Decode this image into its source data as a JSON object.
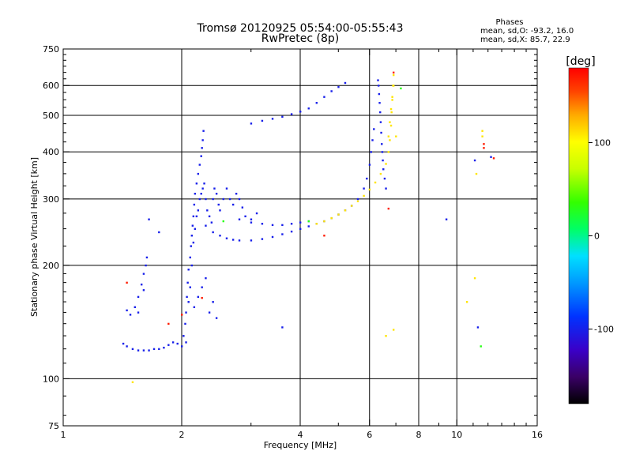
{
  "chart_data": {
    "type": "scatter",
    "title": "Tromsø 20120925 05:54:00-05:55:43",
    "subtitle": "RwPretec (8p)",
    "annotation": {
      "header": "Phases",
      "line1": "mean, sd,O: -93.2, 16.0",
      "line2": "mean, sd,X:  85.7, 22.9"
    },
    "xlabel": "Frequency [MHz]",
    "ylabel": "Stationary phase Virtual Height [km]",
    "x_scale": "log",
    "y_scale": "log",
    "xlim": [
      1,
      16
    ],
    "ylim": [
      75,
      750
    ],
    "x_ticks": [
      {
        "v": 1,
        "label": "1"
      },
      {
        "v": 2,
        "label": "2"
      },
      {
        "v": 4,
        "label": "4"
      },
      {
        "v": 6,
        "label": "6"
      },
      {
        "v": 8,
        "label": "8"
      },
      {
        "v": 10,
        "label": "10"
      },
      {
        "v": 16,
        "label": "16"
      }
    ],
    "x_grid": [
      2,
      4,
      6,
      8,
      10
    ],
    "y_ticks": [
      {
        "v": 75,
        "label": "75"
      },
      {
        "v": 100,
        "label": "100"
      },
      {
        "v": 200,
        "label": "200"
      },
      {
        "v": 300,
        "label": "300"
      },
      {
        "v": 400,
        "label": "400"
      },
      {
        "v": 500,
        "label": "500"
      },
      {
        "v": 600,
        "label": "600"
      },
      {
        "v": 750,
        "label": "750"
      }
    ],
    "y_grid": [
      100,
      200,
      300,
      400,
      500,
      600
    ],
    "grid": true,
    "colorbar": {
      "label": "[deg]",
      "range": [
        -180,
        180
      ],
      "ticks": [
        {
          "v": 100,
          "label": "100"
        },
        {
          "v": 0,
          "label": "0"
        },
        {
          "v": -100,
          "label": "-100"
        }
      ]
    },
    "series": [
      {
        "points": [
          [
            1.42,
            124
          ],
          [
            1.45,
            122
          ],
          [
            1.5,
            120
          ],
          [
            1.55,
            119
          ],
          [
            1.6,
            119
          ],
          [
            1.65,
            119
          ],
          [
            1.7,
            120
          ],
          [
            1.75,
            120
          ],
          [
            1.8,
            121
          ],
          [
            1.85,
            123
          ],
          [
            1.9,
            125
          ],
          [
            1.95,
            124
          ],
          [
            2.0,
            122
          ],
          [
            2.05,
            125
          ],
          [
            1.45,
            152
          ],
          [
            1.48,
            148
          ],
          [
            1.52,
            155
          ],
          [
            1.55,
            165
          ],
          [
            1.58,
            178
          ],
          [
            1.6,
            190
          ],
          [
            1.62,
            200
          ],
          [
            1.63,
            210
          ],
          [
            1.6,
            172
          ],
          [
            1.55,
            150
          ],
          [
            2.02,
            130
          ],
          [
            2.04,
            140
          ],
          [
            2.05,
            150
          ],
          [
            2.06,
            165
          ],
          [
            2.07,
            180
          ],
          [
            2.08,
            195
          ],
          [
            2.1,
            210
          ],
          [
            2.11,
            225
          ],
          [
            2.12,
            240
          ],
          [
            2.13,
            255
          ],
          [
            2.14,
            270
          ],
          [
            2.15,
            290
          ],
          [
            2.16,
            310
          ],
          [
            2.18,
            330
          ],
          [
            2.2,
            350
          ],
          [
            2.22,
            370
          ],
          [
            2.24,
            390
          ],
          [
            2.25,
            410
          ],
          [
            2.26,
            430
          ],
          [
            2.27,
            455
          ],
          [
            2.08,
            160
          ],
          [
            2.1,
            175
          ],
          [
            2.12,
            200
          ],
          [
            2.14,
            230
          ],
          [
            2.16,
            250
          ],
          [
            2.18,
            270
          ],
          [
            2.2,
            280
          ],
          [
            2.22,
            300
          ],
          [
            2.24,
            310
          ],
          [
            2.26,
            320
          ],
          [
            2.28,
            330
          ],
          [
            2.3,
            300
          ],
          [
            2.32,
            280
          ],
          [
            2.35,
            270
          ],
          [
            2.38,
            260
          ],
          [
            2.4,
            300
          ],
          [
            2.42,
            320
          ],
          [
            2.45,
            310
          ],
          [
            2.48,
            290
          ],
          [
            2.5,
            280
          ],
          [
            2.55,
            300
          ],
          [
            2.6,
            320
          ],
          [
            2.65,
            300
          ],
          [
            2.7,
            290
          ],
          [
            2.75,
            310
          ],
          [
            2.8,
            300
          ],
          [
            2.85,
            285
          ],
          [
            2.9,
            270
          ],
          [
            3.0,
            265
          ],
          [
            3.1,
            275
          ],
          [
            2.15,
            155
          ],
          [
            2.2,
            165
          ],
          [
            2.25,
            175
          ],
          [
            2.3,
            185
          ],
          [
            2.35,
            150
          ],
          [
            2.4,
            160
          ],
          [
            2.45,
            145
          ],
          [
            2.3,
            255
          ],
          [
            2.4,
            245
          ],
          [
            2.5,
            240
          ],
          [
            2.6,
            236
          ],
          [
            2.7,
            234
          ],
          [
            2.8,
            233
          ],
          [
            3.0,
            233
          ],
          [
            3.2,
            235
          ],
          [
            3.4,
            238
          ],
          [
            3.6,
            242
          ],
          [
            3.8,
            246
          ],
          [
            4.0,
            250
          ],
          [
            4.2,
            254
          ],
          [
            4.4,
            258
          ],
          [
            4.6,
            262
          ],
          [
            4.8,
            267
          ],
          [
            5.0,
            273
          ],
          [
            5.2,
            280
          ],
          [
            5.4,
            288
          ],
          [
            5.6,
            300
          ],
          [
            5.8,
            320
          ],
          [
            5.9,
            340
          ],
          [
            6.0,
            370
          ],
          [
            6.05,
            400
          ],
          [
            6.1,
            430
          ],
          [
            6.15,
            460
          ],
          [
            2.8,
            265
          ],
          [
            3.0,
            260
          ],
          [
            3.2,
            258
          ],
          [
            3.4,
            256
          ],
          [
            3.6,
            256
          ],
          [
            3.8,
            258
          ],
          [
            4.0,
            260
          ],
          [
            4.2,
            262
          ],
          [
            3.0,
            476
          ],
          [
            3.2,
            484
          ],
          [
            3.4,
            490
          ],
          [
            3.6,
            496
          ],
          [
            3.8,
            504
          ],
          [
            4.0,
            512
          ],
          [
            4.2,
            522
          ],
          [
            4.4,
            540
          ],
          [
            4.6,
            560
          ],
          [
            4.8,
            580
          ],
          [
            5.0,
            595
          ],
          [
            5.2,
            610
          ],
          [
            6.3,
            620
          ],
          [
            6.32,
            600
          ],
          [
            6.34,
            570
          ],
          [
            6.36,
            540
          ],
          [
            6.38,
            510
          ],
          [
            6.4,
            480
          ],
          [
            6.42,
            450
          ],
          [
            6.44,
            420
          ],
          [
            6.46,
            400
          ],
          [
            6.48,
            380
          ],
          [
            6.5,
            360
          ],
          [
            6.55,
            340
          ],
          [
            6.6,
            320
          ],
          [
            1.65,
            265
          ],
          [
            1.75,
            245
          ],
          [
            3.6,
            137
          ],
          [
            9.4,
            265
          ],
          [
            11.1,
            380
          ],
          [
            11.3,
            137
          ],
          [
            12.2,
            388
          ]
        ],
        "phase": -100
      },
      {
        "points": [
          [
            4.4,
            258
          ],
          [
            4.6,
            262
          ],
          [
            4.8,
            267
          ],
          [
            5.0,
            273
          ],
          [
            5.2,
            280
          ],
          [
            5.4,
            288
          ],
          [
            5.6,
            296
          ],
          [
            5.8,
            306
          ],
          [
            6.0,
            318
          ],
          [
            6.2,
            332
          ],
          [
            6.4,
            350
          ],
          [
            6.6,
            372
          ],
          [
            6.7,
            400
          ],
          [
            6.75,
            430
          ],
          [
            6.8,
            470
          ],
          [
            6.82,
            510
          ],
          [
            6.85,
            550
          ],
          [
            6.88,
            600
          ],
          [
            6.9,
            640
          ],
          [
            6.7,
            440
          ],
          [
            6.75,
            480
          ],
          [
            6.8,
            520
          ],
          [
            6.85,
            560
          ],
          [
            6.9,
            600
          ],
          [
            7.0,
            440
          ],
          [
            6.6,
            130
          ],
          [
            6.9,
            135
          ],
          [
            11.1,
            185
          ],
          [
            11.6,
            455
          ],
          [
            11.6,
            440
          ],
          [
            1.5,
            98
          ],
          [
            10.6,
            160
          ],
          [
            11.2,
            350
          ]
        ],
        "phase": 110
      },
      {
        "points": [
          [
            1.45,
            180
          ],
          [
            1.85,
            140
          ],
          [
            2.0,
            148
          ],
          [
            2.25,
            164
          ],
          [
            4.6,
            240
          ],
          [
            6.7,
            283
          ],
          [
            11.7,
            420
          ],
          [
            11.7,
            410
          ],
          [
            12.4,
            385
          ],
          [
            6.9,
            650
          ]
        ],
        "phase": 170
      },
      {
        "points": [
          [
            2.55,
            262
          ],
          [
            4.2,
            262
          ],
          [
            7.2,
            590
          ],
          [
            11.5,
            122
          ]
        ],
        "phase": 30
      }
    ]
  }
}
